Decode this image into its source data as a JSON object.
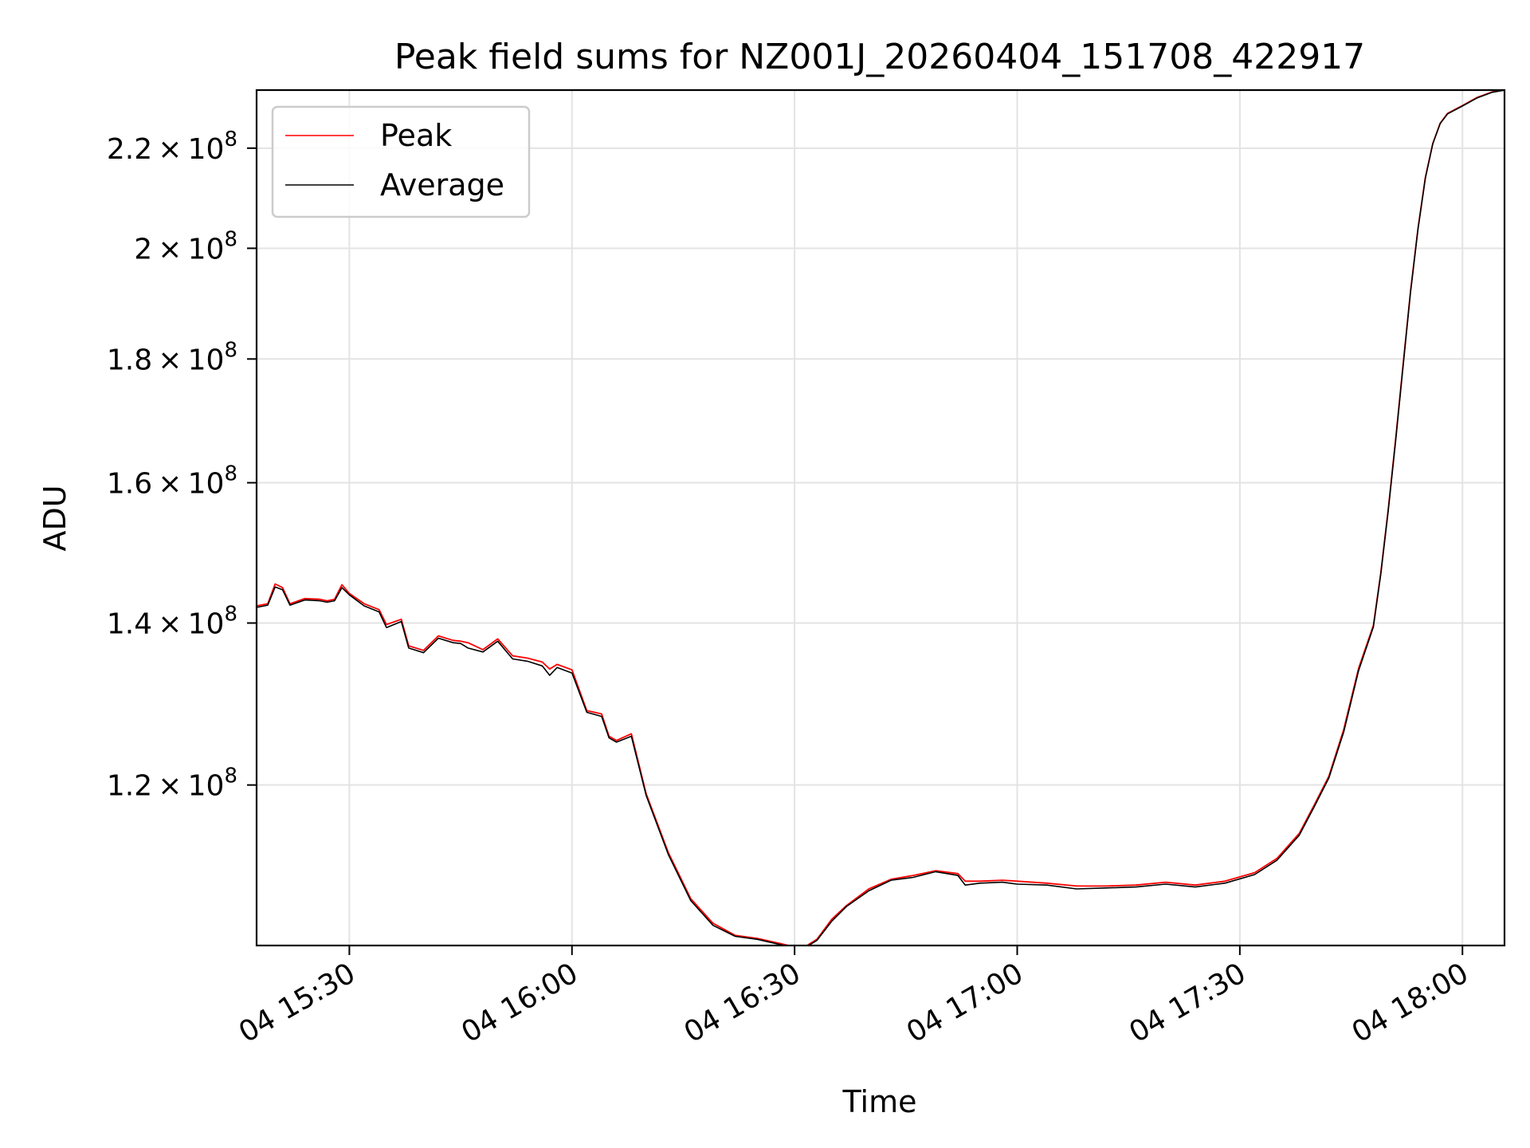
{
  "chart_data": {
    "type": "line",
    "title": "Peak field sums for NZ001J_20260404_151708_422917",
    "xlabel": "Time",
    "ylabel": "ADU",
    "yscale": "log",
    "xlim": [
      "2026-04-04 15:17:30",
      "2026-04-04 18:05:40"
    ],
    "ylim": [
      103000000,
      232500000
    ],
    "grid": true,
    "legend": "upper-left",
    "x_ticks": [
      {
        "value": "2026-04-04 15:30",
        "label": "04 15:30"
      },
      {
        "value": "2026-04-04 16:00",
        "label": "04 16:00"
      },
      {
        "value": "2026-04-04 16:30",
        "label": "04 16:30"
      },
      {
        "value": "2026-04-04 17:00",
        "label": "04 17:00"
      },
      {
        "value": "2026-04-04 17:30",
        "label": "04 17:30"
      },
      {
        "value": "2026-04-04 18:00",
        "label": "04 18:00"
      }
    ],
    "y_ticks": [
      {
        "value": 120000000,
        "mantissa": "1.2",
        "base": "10",
        "exp": "8"
      },
      {
        "value": 140000000,
        "mantissa": "1.4",
        "base": "10",
        "exp": "8"
      },
      {
        "value": 160000000,
        "mantissa": "1.6",
        "base": "10",
        "exp": "8"
      },
      {
        "value": 180000000,
        "mantissa": "1.8",
        "base": "10",
        "exp": "8"
      },
      {
        "value": 200000000,
        "mantissa": "2",
        "base": "10",
        "exp": "8"
      },
      {
        "value": 220000000,
        "mantissa": "2.2",
        "base": "10",
        "exp": "8"
      }
    ],
    "series": [
      {
        "name": "Peak",
        "color": "#ff0000",
        "x": [
          "2026-04-04 15:17:30",
          "2026-04-04 15:19:00",
          "2026-04-04 15:20:00",
          "2026-04-04 15:21:00",
          "2026-04-04 15:22:00",
          "2026-04-04 15:24:00",
          "2026-04-04 15:26:00",
          "2026-04-04 15:27:00",
          "2026-04-04 15:28:00",
          "2026-04-04 15:29:00",
          "2026-04-04 15:30:00",
          "2026-04-04 15:32:00",
          "2026-04-04 15:34:00",
          "2026-04-04 15:35:00",
          "2026-04-04 15:37:00",
          "2026-04-04 15:38:00",
          "2026-04-04 15:40:00",
          "2026-04-04 15:42:00",
          "2026-04-04 15:44:00",
          "2026-04-04 15:45:00",
          "2026-04-04 15:46:00",
          "2026-04-04 15:48:00",
          "2026-04-04 15:50:00",
          "2026-04-04 15:52:00",
          "2026-04-04 15:54:00",
          "2026-04-04 15:56:00",
          "2026-04-04 15:57:00",
          "2026-04-04 15:58:00",
          "2026-04-04 16:00:00",
          "2026-04-04 16:02:00",
          "2026-04-04 16:04:00",
          "2026-04-04 16:05:00",
          "2026-04-04 16:06:00",
          "2026-04-04 16:08:00",
          "2026-04-04 16:10:00",
          "2026-04-04 16:13:00",
          "2026-04-04 16:16:00",
          "2026-04-04 16:19:00",
          "2026-04-04 16:22:00",
          "2026-04-04 16:25:00",
          "2026-04-04 16:28:00",
          "2026-04-04 16:31:00",
          "2026-04-04 16:33:00",
          "2026-04-04 16:35:00",
          "2026-04-04 16:37:00",
          "2026-04-04 16:40:00",
          "2026-04-04 16:43:00",
          "2026-04-04 16:46:00",
          "2026-04-04 16:49:00",
          "2026-04-04 16:52:00",
          "2026-04-04 16:53:00",
          "2026-04-04 16:55:00",
          "2026-04-04 16:58:00",
          "2026-04-04 17:00:00",
          "2026-04-04 17:04:00",
          "2026-04-04 17:08:00",
          "2026-04-04 17:12:00",
          "2026-04-04 17:16:00",
          "2026-04-04 17:20:00",
          "2026-04-04 17:24:00",
          "2026-04-04 17:28:00",
          "2026-04-04 17:32:00",
          "2026-04-04 17:35:00",
          "2026-04-04 17:38:00",
          "2026-04-04 17:40:00",
          "2026-04-04 17:42:00",
          "2026-04-04 17:44:00",
          "2026-04-04 17:46:00",
          "2026-04-04 17:48:00",
          "2026-04-04 17:49:00",
          "2026-04-04 17:50:00",
          "2026-04-04 17:51:00",
          "2026-04-04 17:52:00",
          "2026-04-04 17:53:00",
          "2026-04-04 17:54:00",
          "2026-04-04 17:55:00",
          "2026-04-04 17:56:00",
          "2026-04-04 17:57:00",
          "2026-04-04 17:58:00",
          "2026-04-04 18:00:00",
          "2026-04-04 18:02:00",
          "2026-04-04 18:04:00",
          "2026-04-04 18:05:40"
        ],
        "values": [
          142300000,
          142600000,
          145300000,
          144800000,
          142600000,
          143300000,
          143200000,
          143000000,
          143200000,
          145200000,
          144000000,
          142600000,
          141800000,
          139800000,
          140500000,
          137000000,
          136400000,
          138300000,
          137700000,
          137600000,
          137400000,
          136500000,
          137900000,
          135700000,
          135400000,
          134900000,
          134000000,
          134600000,
          133900000,
          128800000,
          128400000,
          125700000,
          125200000,
          126000000,
          119000000,
          112500000,
          107700000,
          105200000,
          104000000,
          103700000,
          103200000,
          102700000,
          103600000,
          105600000,
          107000000,
          108700000,
          109700000,
          110100000,
          110600000,
          110300000,
          109500000,
          109500000,
          109600000,
          109500000,
          109300000,
          109000000,
          109000000,
          109100000,
          109400000,
          109100000,
          109500000,
          110400000,
          111900000,
          114600000,
          117700000,
          121000000,
          126500000,
          134100000,
          139700000,
          146900000,
          156000000,
          166800000,
          179000000,
          191900000,
          203800000,
          214000000,
          221000000,
          225300000,
          227400000,
          229100000,
          230900000,
          232100000,
          232500000
        ]
      },
      {
        "name": "Average",
        "color": "#000000",
        "x": [
          "2026-04-04 15:17:30",
          "2026-04-04 15:19:00",
          "2026-04-04 15:20:00",
          "2026-04-04 15:21:00",
          "2026-04-04 15:22:00",
          "2026-04-04 15:24:00",
          "2026-04-04 15:26:00",
          "2026-04-04 15:27:00",
          "2026-04-04 15:28:00",
          "2026-04-04 15:29:00",
          "2026-04-04 15:30:00",
          "2026-04-04 15:32:00",
          "2026-04-04 15:34:00",
          "2026-04-04 15:35:00",
          "2026-04-04 15:37:00",
          "2026-04-04 15:38:00",
          "2026-04-04 15:40:00",
          "2026-04-04 15:42:00",
          "2026-04-04 15:44:00",
          "2026-04-04 15:45:00",
          "2026-04-04 15:46:00",
          "2026-04-04 15:48:00",
          "2026-04-04 15:50:00",
          "2026-04-04 15:52:00",
          "2026-04-04 15:54:00",
          "2026-04-04 15:56:00",
          "2026-04-04 15:57:00",
          "2026-04-04 15:58:00",
          "2026-04-04 16:00:00",
          "2026-04-04 16:02:00",
          "2026-04-04 16:04:00",
          "2026-04-04 16:05:00",
          "2026-04-04 16:06:00",
          "2026-04-04 16:08:00",
          "2026-04-04 16:10:00",
          "2026-04-04 16:13:00",
          "2026-04-04 16:16:00",
          "2026-04-04 16:19:00",
          "2026-04-04 16:22:00",
          "2026-04-04 16:25:00",
          "2026-04-04 16:28:00",
          "2026-04-04 16:31:00",
          "2026-04-04 16:33:00",
          "2026-04-04 16:35:00",
          "2026-04-04 16:37:00",
          "2026-04-04 16:40:00",
          "2026-04-04 16:43:00",
          "2026-04-04 16:46:00",
          "2026-04-04 16:49:00",
          "2026-04-04 16:52:00",
          "2026-04-04 16:53:00",
          "2026-04-04 16:55:00",
          "2026-04-04 16:58:00",
          "2026-04-04 17:00:00",
          "2026-04-04 17:04:00",
          "2026-04-04 17:08:00",
          "2026-04-04 17:12:00",
          "2026-04-04 17:16:00",
          "2026-04-04 17:20:00",
          "2026-04-04 17:24:00",
          "2026-04-04 17:28:00",
          "2026-04-04 17:32:00",
          "2026-04-04 17:35:00",
          "2026-04-04 17:38:00",
          "2026-04-04 17:40:00",
          "2026-04-04 17:42:00",
          "2026-04-04 17:44:00",
          "2026-04-04 17:46:00",
          "2026-04-04 17:48:00",
          "2026-04-04 17:49:00",
          "2026-04-04 17:50:00",
          "2026-04-04 17:51:00",
          "2026-04-04 17:52:00",
          "2026-04-04 17:53:00",
          "2026-04-04 17:54:00",
          "2026-04-04 17:55:00",
          "2026-04-04 17:56:00",
          "2026-04-04 17:57:00",
          "2026-04-04 17:58:00",
          "2026-04-04 18:00:00",
          "2026-04-04 18:02:00",
          "2026-04-04 18:04:00",
          "2026-04-04 18:05:40"
        ],
        "values": [
          142100000,
          142400000,
          144900000,
          144500000,
          142400000,
          143100000,
          143000000,
          142800000,
          143000000,
          144800000,
          143800000,
          142300000,
          141500000,
          139400000,
          140200000,
          136700000,
          136100000,
          138000000,
          137400000,
          137300000,
          136700000,
          136200000,
          137600000,
          135300000,
          135000000,
          134400000,
          133200000,
          134200000,
          133500000,
          128600000,
          128100000,
          125500000,
          125000000,
          125700000,
          118800000,
          112300000,
          107500000,
          105000000,
          103900000,
          103600000,
          103100000,
          102600000,
          103500000,
          105400000,
          106900000,
          108500000,
          109600000,
          109900000,
          110500000,
          110100000,
          109100000,
          109300000,
          109400000,
          109200000,
          109100000,
          108700000,
          108800000,
          108900000,
          109200000,
          108900000,
          109300000,
          110200000,
          111700000,
          114400000,
          117500000,
          120800000,
          126200000,
          133800000,
          139500000,
          146700000,
          155800000,
          166500000,
          178700000,
          191700000,
          203600000,
          213800000,
          220900000,
          225200000,
          227300000,
          229000000,
          230800000,
          232000000,
          232500000
        ]
      }
    ]
  }
}
